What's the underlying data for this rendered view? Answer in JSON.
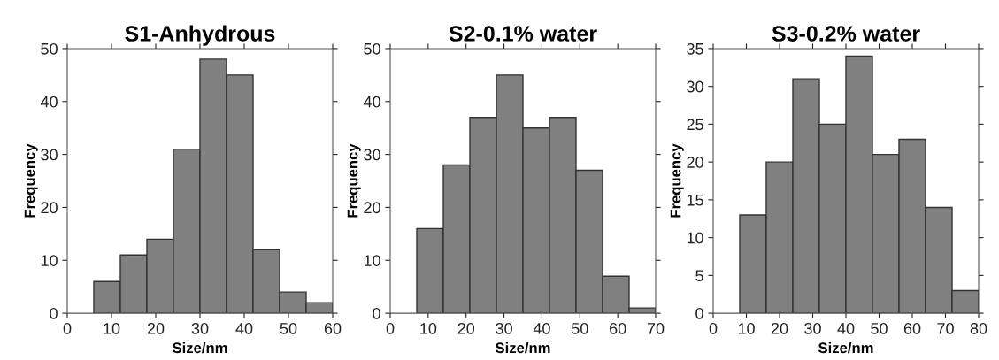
{
  "chart_data": [
    {
      "type": "histogram",
      "title": "S1-Anhydrous",
      "xlabel": "Size/nm",
      "ylabel": "Frequency",
      "color": "#808080",
      "bins": [
        6,
        12,
        18,
        24,
        30,
        36,
        42,
        48,
        54,
        60
      ],
      "values": [
        6,
        11,
        14,
        31,
        48,
        45,
        12,
        4,
        2
      ],
      "xlim": [
        0,
        60
      ],
      "xticks": [
        0,
        10,
        20,
        30,
        40,
        50,
        60
      ],
      "ylim": [
        0,
        50
      ],
      "yticks": [
        0,
        10,
        20,
        30,
        40,
        50
      ],
      "grid": false
    },
    {
      "type": "histogram",
      "title": "S2-0.1% water",
      "xlabel": "Size/nm",
      "ylabel": "Frequency",
      "color": "#808080",
      "bins": [
        7,
        14,
        21,
        28,
        35,
        42,
        49,
        56,
        63,
        70
      ],
      "values": [
        16,
        28,
        37,
        45,
        35,
        37,
        27,
        7,
        1
      ],
      "xlim": [
        0,
        70
      ],
      "xticks": [
        0,
        10,
        20,
        30,
        40,
        50,
        60,
        70
      ],
      "ylim": [
        0,
        50
      ],
      "yticks": [
        0,
        10,
        20,
        30,
        40,
        50
      ],
      "grid": false
    },
    {
      "type": "histogram",
      "title": "S3-0.2% water",
      "xlabel": "Size/nm",
      "ylabel": "Frequency",
      "color": "#808080",
      "bins": [
        8,
        16,
        24,
        32,
        40,
        48,
        56,
        64,
        72,
        80
      ],
      "values": [
        13,
        20,
        31,
        25,
        34,
        21,
        23,
        14,
        3
      ],
      "xlim": [
        0,
        80
      ],
      "xticks": [
        0,
        10,
        20,
        30,
        40,
        50,
        60,
        70,
        80
      ],
      "ylim": [
        0,
        35
      ],
      "yticks": [
        0,
        5,
        10,
        15,
        20,
        25,
        30,
        35
      ],
      "grid": false
    }
  ]
}
